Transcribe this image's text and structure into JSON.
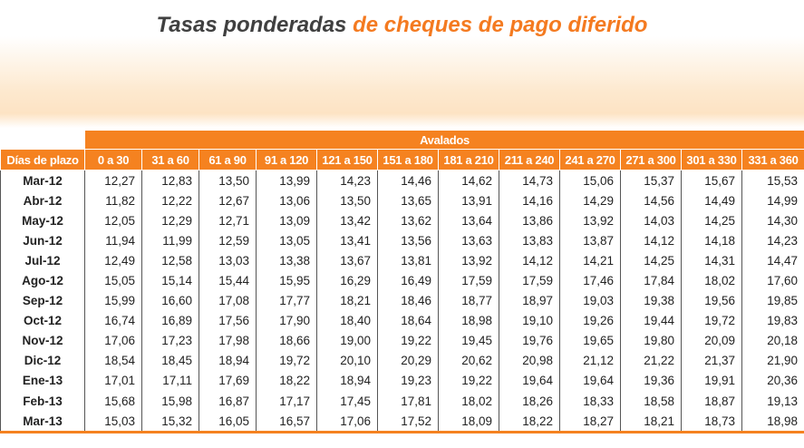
{
  "title": {
    "part1": "Tasas ponderadas",
    "part2": "de cheques de pago diferido"
  },
  "colors": {
    "accent": "#f58220",
    "title_dark": "#404040"
  },
  "table": {
    "group_header": "Avalados",
    "columns": [
      "Días de plazo",
      "0 a 30",
      "31 a 60",
      "61 a 90",
      "91 a 120",
      "121 a 150",
      "151 a 180",
      "181 a 210",
      "211 a 240",
      "241 a 270",
      "271 a 300",
      "301 a 330",
      "331 a 360"
    ],
    "rows": [
      [
        "Mar-12",
        "12,27",
        "12,83",
        "13,50",
        "13,99",
        "14,23",
        "14,46",
        "14,62",
        "14,73",
        "15,06",
        "15,37",
        "15,67",
        "15,53"
      ],
      [
        "Abr-12",
        "11,82",
        "12,22",
        "12,67",
        "13,06",
        "13,50",
        "13,65",
        "13,91",
        "14,16",
        "14,29",
        "14,56",
        "14,49",
        "14,99"
      ],
      [
        "May-12",
        "12,05",
        "12,29",
        "12,71",
        "13,09",
        "13,42",
        "13,62",
        "13,64",
        "13,86",
        "13,92",
        "14,03",
        "14,25",
        "14,30"
      ],
      [
        "Jun-12",
        "11,94",
        "11,99",
        "12,59",
        "13,05",
        "13,41",
        "13,56",
        "13,63",
        "13,83",
        "13,87",
        "14,12",
        "14,18",
        "14,23"
      ],
      [
        "Jul-12",
        "12,49",
        "12,58",
        "13,03",
        "13,38",
        "13,67",
        "13,81",
        "13,92",
        "14,12",
        "14,21",
        "14,25",
        "14,31",
        "14,47"
      ],
      [
        "Ago-12",
        "15,05",
        "15,14",
        "15,44",
        "15,95",
        "16,29",
        "16,49",
        "17,59",
        "17,59",
        "17,46",
        "17,84",
        "18,02",
        "17,60"
      ],
      [
        "Sep-12",
        "15,99",
        "16,60",
        "17,08",
        "17,77",
        "18,21",
        "18,46",
        "18,77",
        "18,97",
        "19,03",
        "19,38",
        "19,56",
        "19,85"
      ],
      [
        "Oct-12",
        "16,74",
        "16,89",
        "17,56",
        "17,90",
        "18,40",
        "18,64",
        "18,98",
        "19,10",
        "19,26",
        "19,44",
        "19,72",
        "19,83"
      ],
      [
        "Nov-12",
        "17,06",
        "17,23",
        "17,98",
        "18,66",
        "19,00",
        "19,22",
        "19,45",
        "19,76",
        "19,65",
        "19,80",
        "20,09",
        "20,18"
      ],
      [
        "Dic-12",
        "18,54",
        "18,45",
        "18,94",
        "19,72",
        "20,10",
        "20,29",
        "20,62",
        "20,98",
        "21,12",
        "21,22",
        "21,37",
        "21,90"
      ],
      [
        "Ene-13",
        "17,01",
        "17,11",
        "17,69",
        "18,22",
        "18,94",
        "19,23",
        "19,22",
        "19,64",
        "19,64",
        "19,36",
        "19,91",
        "20,36"
      ],
      [
        "Feb-13",
        "15,68",
        "15,98",
        "16,87",
        "17,17",
        "17,45",
        "17,81",
        "18,02",
        "18,26",
        "18,33",
        "18,58",
        "18,87",
        "19,13"
      ],
      [
        "Mar-13",
        "15,03",
        "15,32",
        "16,05",
        "16,57",
        "17,06",
        "17,52",
        "18,09",
        "18,22",
        "18,27",
        "18,21",
        "18,73",
        "18,98"
      ]
    ]
  }
}
